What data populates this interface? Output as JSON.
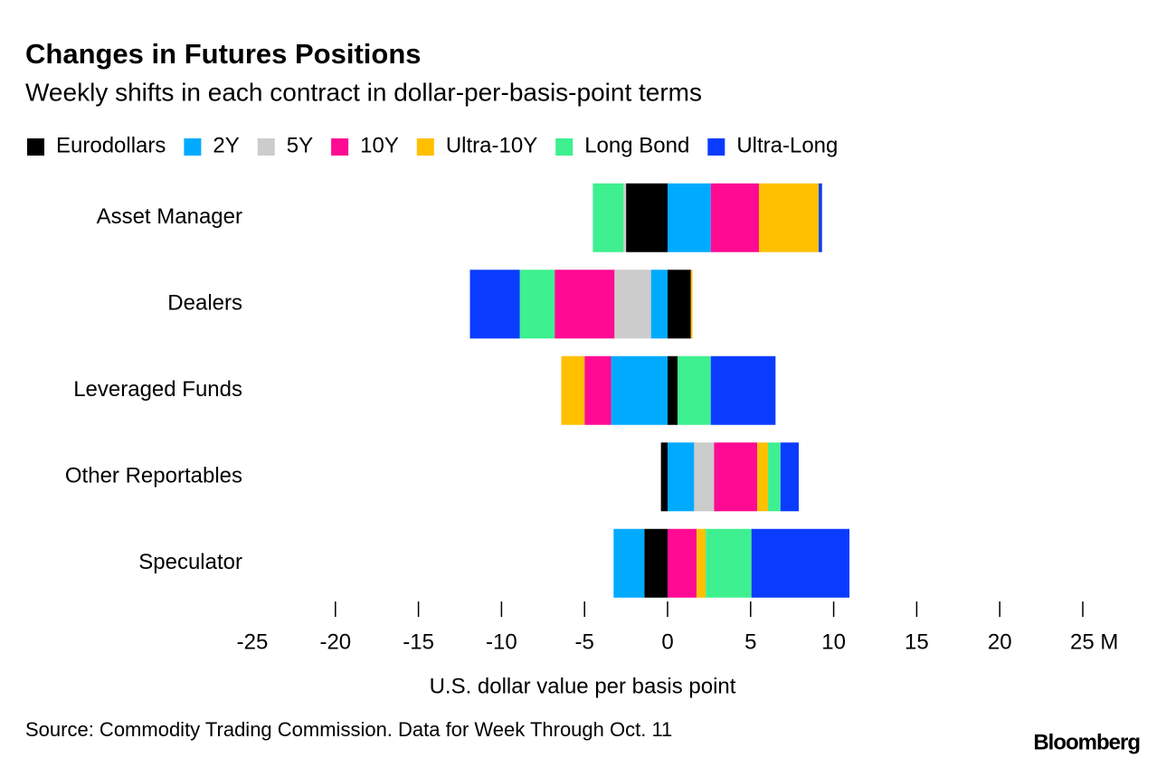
{
  "chart_data": {
    "type": "stacked-bar-horizontal",
    "title": "Changes in Futures Positions",
    "subtitle": "Weekly shifts in each contract in dollar-per-basis-point terms",
    "xlabel": "U.S. dollar value per basis point",
    "source": "Source: Commodity Trading Commission. Data for Week Through Oct. 11",
    "brand": "Bloomberg",
    "legend": "top-left",
    "categories": [
      "Asset Manager",
      "Dealers",
      "Leveraged Funds",
      "Other Reportables",
      "Speculator"
    ],
    "series": [
      {
        "name": "Eurodollars",
        "color": "#000000",
        "values": [
          -2.5,
          1.4,
          0.6,
          -0.4,
          -1.4
        ]
      },
      {
        "name": "2Y",
        "color": "#00aaff",
        "values": [
          2.6,
          -1.0,
          -3.4,
          1.6,
          -1.85
        ]
      },
      {
        "name": "5Y",
        "color": "#cccccc",
        "values": [
          -0.15,
          -2.2,
          0,
          1.2,
          0
        ]
      },
      {
        "name": "10Y",
        "color": "#ff0a93",
        "values": [
          2.9,
          -3.6,
          -1.6,
          2.6,
          1.75
        ]
      },
      {
        "name": "Ultra-10Y",
        "color": "#ffc000",
        "values": [
          3.6,
          0.1,
          -1.4,
          0.65,
          0.55
        ]
      },
      {
        "name": "Long Bond",
        "color": "#3ef08f",
        "values": [
          -1.85,
          -2.1,
          2.0,
          0.75,
          2.75
        ]
      },
      {
        "name": "Ultra-Long",
        "color": "#0a3cff",
        "values": [
          0.2,
          -3.0,
          3.9,
          1.1,
          5.9
        ]
      }
    ],
    "xlim": [
      -25,
      25
    ],
    "xticks": [
      -25,
      -20,
      -15,
      -10,
      -5,
      0,
      5,
      10,
      15,
      20,
      {
        "value": 25,
        "label": "25 M"
      }
    ]
  }
}
